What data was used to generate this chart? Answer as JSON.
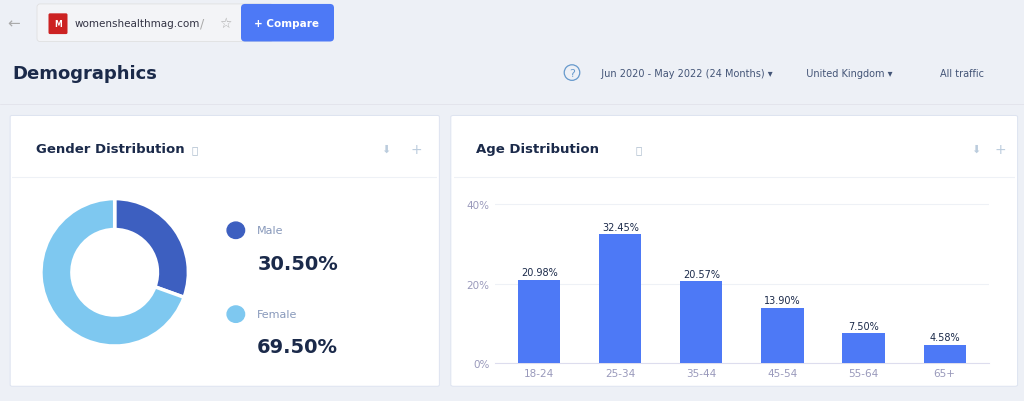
{
  "page_bg": "#edf0f6",
  "card_bg": "#ffffff",
  "nav_bg": "#ffffff",
  "header_bg": "#ffffff",
  "title_text": "Demographics",
  "title_color": "#1b2a4a",
  "gender_title": "Gender Distribution",
  "age_title": "Age Distribution",
  "male_pct": 30.5,
  "female_pct": 69.5,
  "male_label": "Male",
  "female_label": "Female",
  "male_color": "#3d5fc0",
  "female_color": "#7ec8f0",
  "age_categories": [
    "18-24",
    "25-34",
    "35-44",
    "45-54",
    "55-64",
    "65+"
  ],
  "age_values": [
    20.98,
    32.45,
    20.57,
    13.9,
    7.5,
    4.58
  ],
  "bar_color": "#4d79f6",
  "yticks": [
    0,
    20,
    40
  ],
  "ytick_labels": [
    "0%",
    "20%",
    "40%"
  ],
  "ymax": 44,
  "url_text": "womenshealthmag.com",
  "compare_btn_color": "#4d79f6",
  "compare_btn_text": "+ Compare",
  "date_filter": "Jun 2020 - May 2022 (24 Months)",
  "geo_filter": "United Kingdom",
  "traffic_filter": "All traffic",
  "value_label_color": "#1b2a4a",
  "card_title_color": "#1b2a4a",
  "legend_label_color": "#8899bb",
  "pct_text_color": "#1b2a4a",
  "axis_tick_color": "#9999bb",
  "card_border_color": "#dde3f0",
  "separator_color": "#eef1f6",
  "grid_color": "#eef1f6"
}
